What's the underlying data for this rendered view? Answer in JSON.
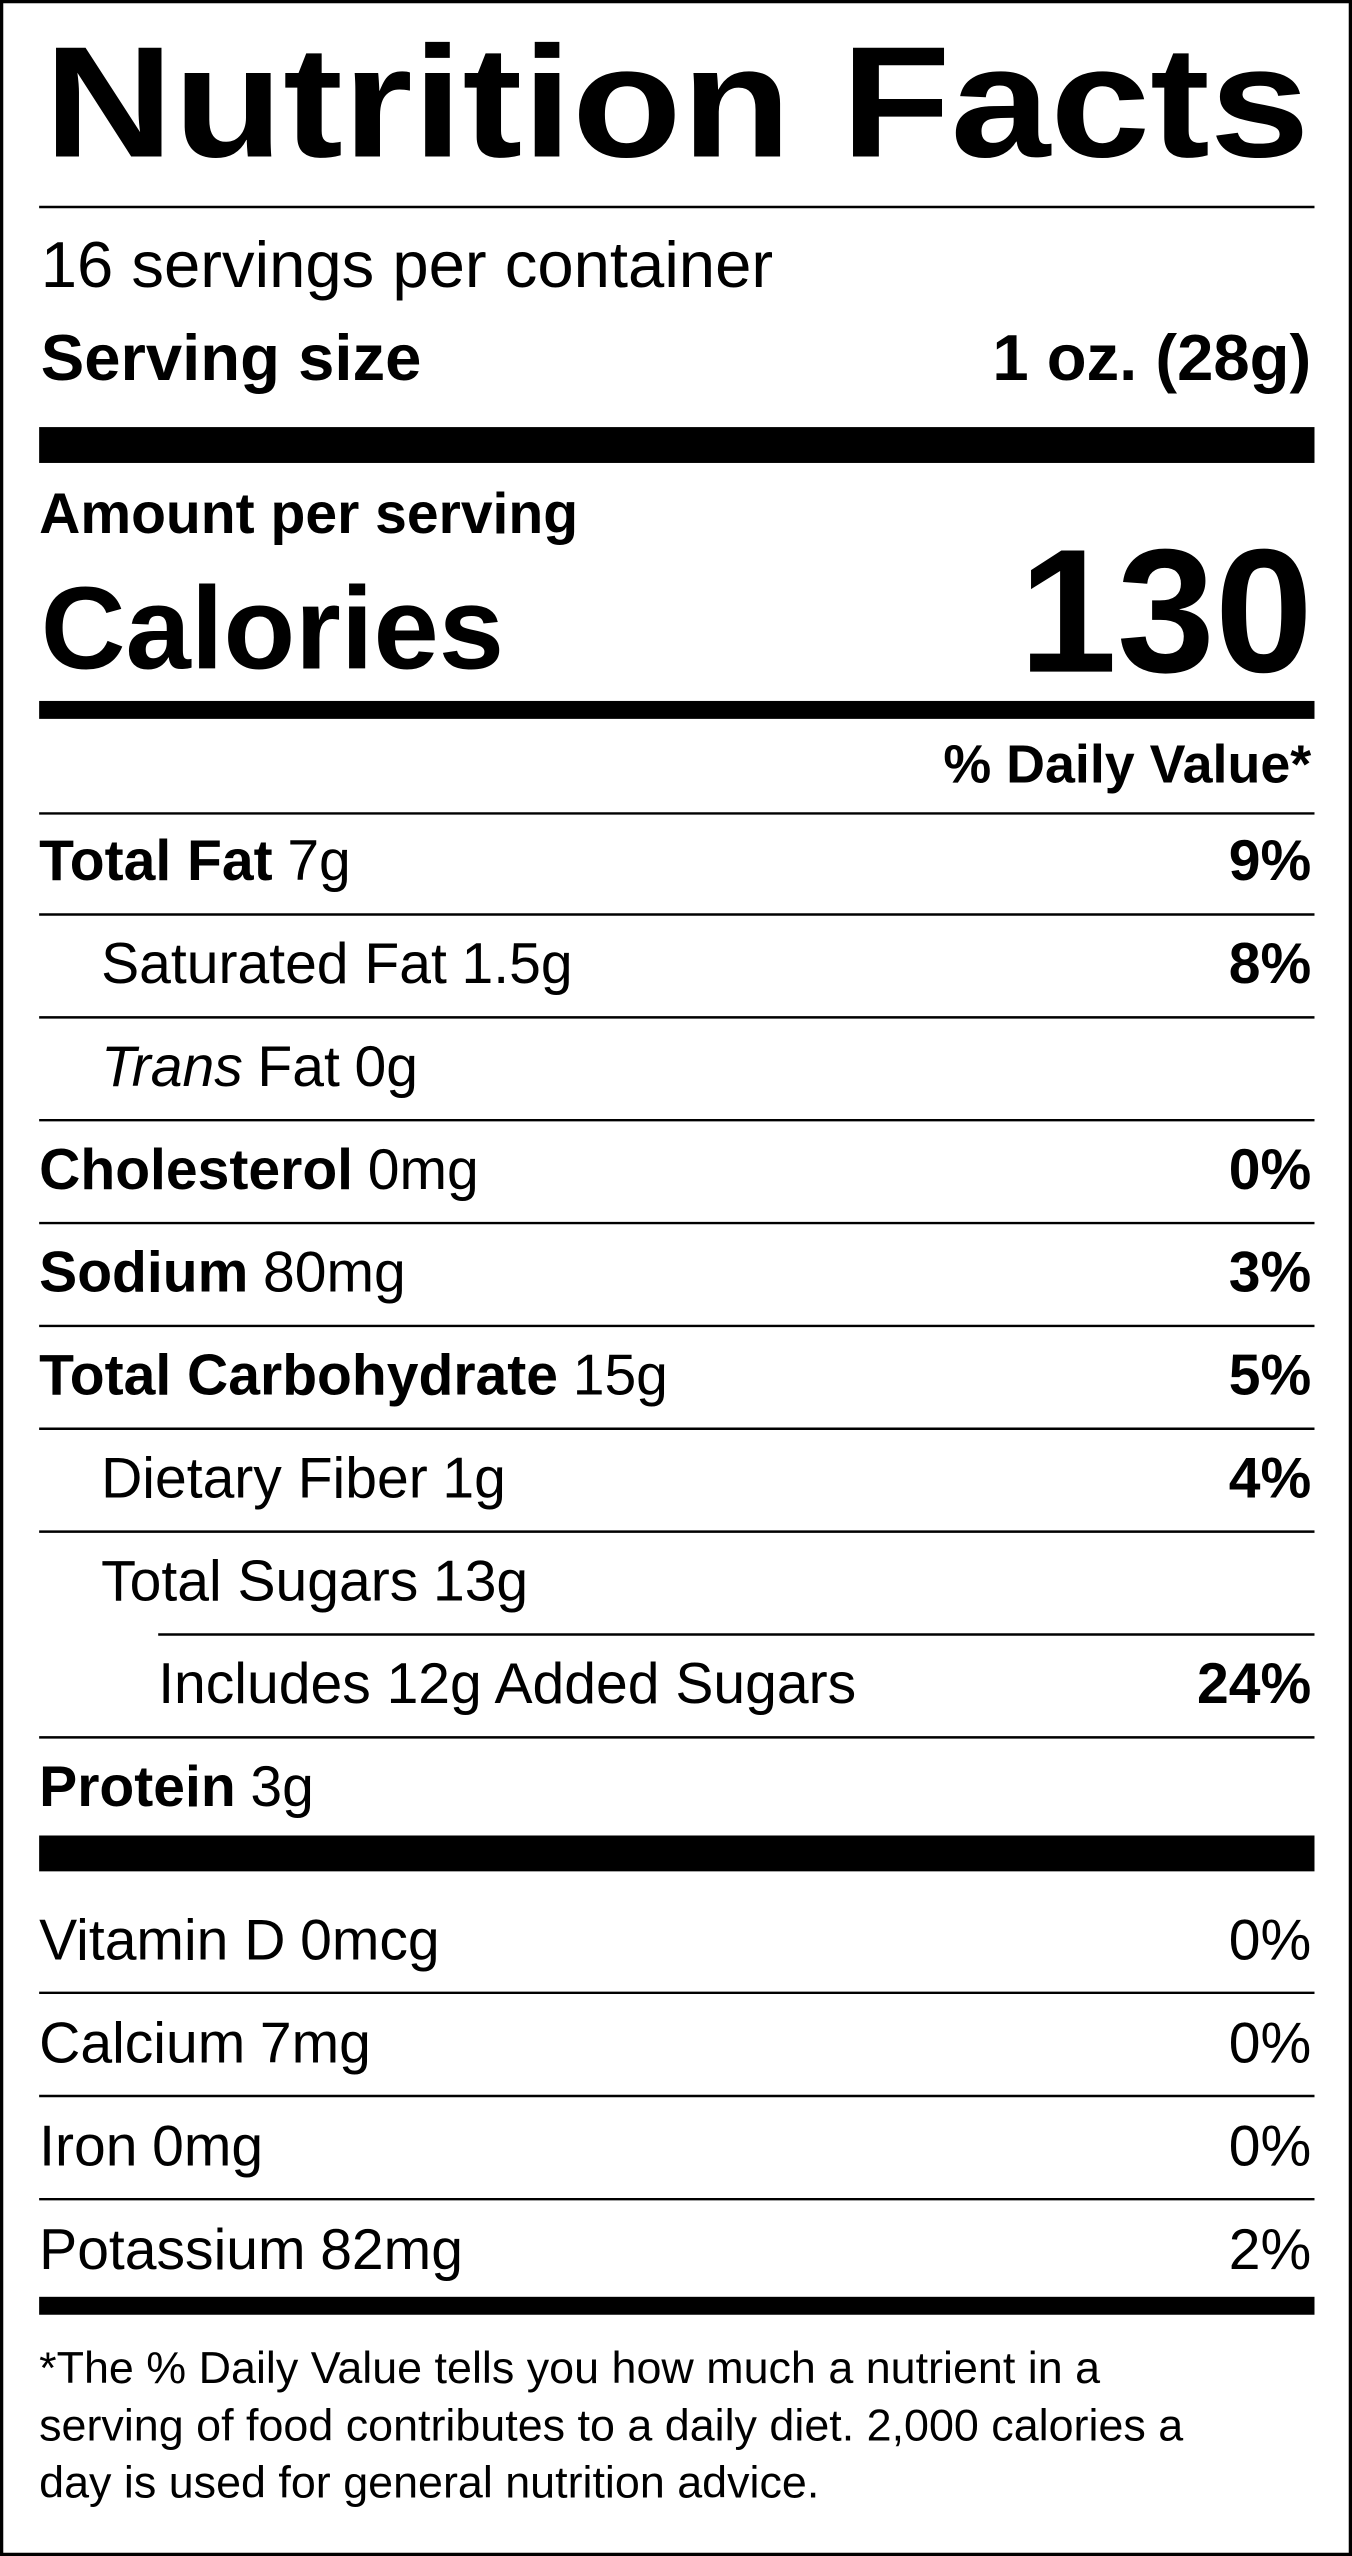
{
  "title": "Nutrition Facts",
  "servings": "16 servings per container",
  "serving_size": {
    "label": "Serving size",
    "value": "1 oz. (28g)"
  },
  "amount_per_serving": "Amount per serving",
  "calories": {
    "label": "Calories",
    "value": "130"
  },
  "daily_value_header": "% Daily Value*",
  "nutrients": [
    {
      "name": "Total Fat",
      "amount": "7g",
      "dv": "9%"
    },
    {
      "name": "Saturated Fat",
      "amount": "1.5g",
      "dv": "8%"
    },
    {
      "name_italic": "Trans",
      "name": "Fat",
      "amount": "0g"
    },
    {
      "name": "Cholesterol",
      "amount": "0mg",
      "dv": "0%"
    },
    {
      "name": "Sodium",
      "amount": "80mg",
      "dv": "3%"
    },
    {
      "name": "Total Carbohydrate",
      "amount": "15g",
      "dv": "5%"
    },
    {
      "name": "Dietary Fiber",
      "amount": "1g",
      "dv": "4%"
    },
    {
      "name": "Total Sugars",
      "amount": "13g"
    },
    {
      "name": "Includes 12g Added Sugars",
      "dv": "24%"
    },
    {
      "name": "Protein",
      "amount": "3g"
    }
  ],
  "vitamins": [
    {
      "name": "Vitamin D",
      "amount": "0mcg",
      "dv": "0%"
    },
    {
      "name": "Calcium",
      "amount": "7mg",
      "dv": "0%"
    },
    {
      "name": "Iron",
      "amount": "0mg",
      "dv": "0%"
    },
    {
      "name": "Potassium",
      "amount": "82mg",
      "dv": "2%"
    }
  ],
  "footnote": [
    "*The % Daily Value tells you how much a nutrient in a",
    "serving of food contributes to a daily diet. 2,000 calories a",
    "day is used for general nutrition advice."
  ]
}
